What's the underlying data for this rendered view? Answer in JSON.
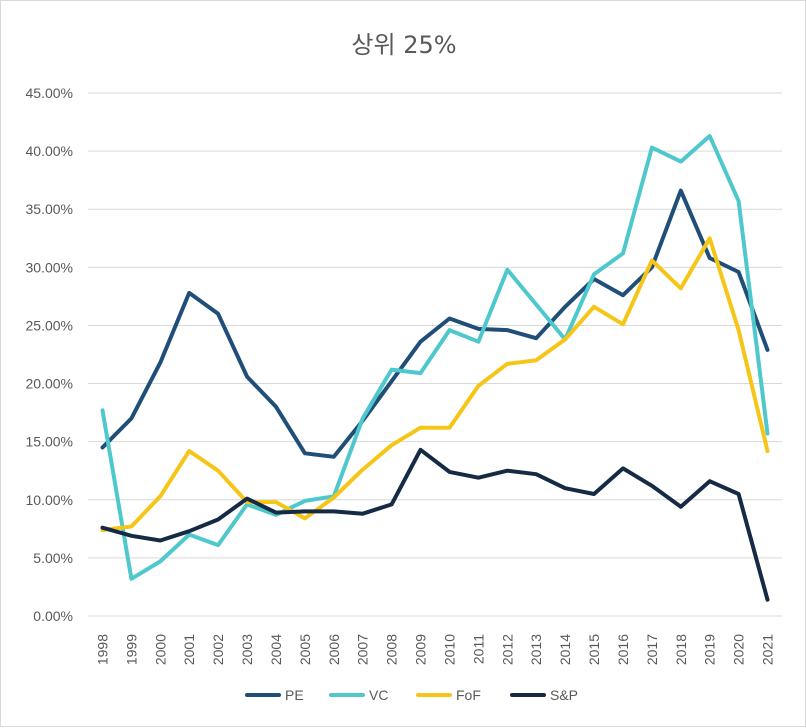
{
  "chart_data": {
    "type": "line",
    "title": "상위 25%",
    "xlabel": "",
    "ylabel": "",
    "ylim": [
      0,
      45
    ],
    "ytick_step": 5,
    "y_tick_labels": [
      "0.00%",
      "5.00%",
      "10.00%",
      "15.00%",
      "20.00%",
      "25.00%",
      "30.00%",
      "35.00%",
      "40.00%",
      "45.00%"
    ],
    "grid": true,
    "legend_position": "bottom",
    "categories": [
      "1998",
      "1999",
      "2000",
      "2001",
      "2002",
      "2003",
      "2004",
      "2005",
      "2006",
      "2007",
      "2008",
      "2009",
      "2010",
      "2011",
      "2012",
      "2013",
      "2014",
      "2015",
      "2016",
      "2017",
      "2018",
      "2019",
      "2020",
      "2021"
    ],
    "series": [
      {
        "name": "PE",
        "color": "#1f4e79",
        "values": [
          14.5,
          17.0,
          21.8,
          27.8,
          26.0,
          20.6,
          18.0,
          14.0,
          13.7,
          16.8,
          20.2,
          23.6,
          25.6,
          24.7,
          24.6,
          23.9,
          26.6,
          29.0,
          27.6,
          30.0,
          36.6,
          30.8,
          29.6,
          22.9
        ]
      },
      {
        "name": "VC",
        "color": "#4ec8cc",
        "values": [
          17.7,
          3.2,
          4.7,
          7.0,
          6.1,
          9.6,
          8.7,
          9.9,
          10.3,
          17.0,
          21.2,
          20.9,
          24.6,
          23.6,
          29.8,
          26.8,
          23.8,
          29.4,
          31.2,
          40.3,
          39.1,
          41.3,
          35.7,
          15.7
        ]
      },
      {
        "name": "FoF",
        "color": "#f5c518",
        "values": [
          7.4,
          7.7,
          10.3,
          14.2,
          12.5,
          9.8,
          9.8,
          8.4,
          10.2,
          12.6,
          14.7,
          16.2,
          16.2,
          19.8,
          21.7,
          22.0,
          23.8,
          26.6,
          25.1,
          30.6,
          28.2,
          32.5,
          24.6,
          14.2
        ]
      },
      {
        "name": "S&P",
        "color": "#152b45",
        "values": [
          7.6,
          6.9,
          6.5,
          7.3,
          8.3,
          10.1,
          8.9,
          9.0,
          9.0,
          8.8,
          9.6,
          14.3,
          12.4,
          11.9,
          12.5,
          12.2,
          11.0,
          10.5,
          12.7,
          11.2,
          9.4,
          11.6,
          10.5,
          1.4
        ]
      }
    ]
  }
}
